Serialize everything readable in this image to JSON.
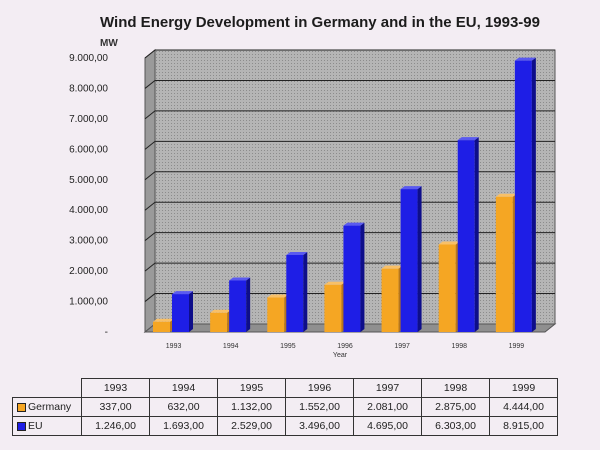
{
  "chart_data": {
    "type": "bar",
    "title": "Wind Energy Development in Germany and in the EU, 1993-99",
    "unit": "MW",
    "xlabel": "Year",
    "ylabel": "MW",
    "ylim": [
      0,
      9000
    ],
    "y_ticks": [
      "9.000,00",
      "8.000,00",
      "7.000,00",
      "6.000,00",
      "5.000,00",
      "4.000,00",
      "3.000,00",
      "2.000,00",
      "1.000,00",
      "-"
    ],
    "categories": [
      "1993",
      "1994",
      "1995",
      "1996",
      "1997",
      "1998",
      "1999"
    ],
    "series": [
      {
        "name": "Germany",
        "color": "#f5a623",
        "values": [
          337,
          632,
          1132,
          1552,
          2081,
          2875,
          4444
        ]
      },
      {
        "name": "EU",
        "color": "#1e1ee6",
        "values": [
          1246,
          1693,
          2529,
          3496,
          4695,
          6303,
          8915
        ]
      }
    ],
    "grid": true,
    "legend": "table-below"
  },
  "table": {
    "years": [
      "1993",
      "1994",
      "1995",
      "1996",
      "1997",
      "1998",
      "1999"
    ],
    "rows": [
      {
        "label": "Germany",
        "color": "#f5a623",
        "values": [
          "337,00",
          "632,00",
          "1.132,00",
          "1.552,00",
          "2.081,00",
          "2.875,00",
          "4.444,00"
        ]
      },
      {
        "label": "EU",
        "color": "#1e1ee6",
        "values": [
          "1.246,00",
          "1.693,00",
          "2.529,00",
          "3.496,00",
          "4.695,00",
          "6.303,00",
          "8.915,00"
        ]
      }
    ]
  }
}
